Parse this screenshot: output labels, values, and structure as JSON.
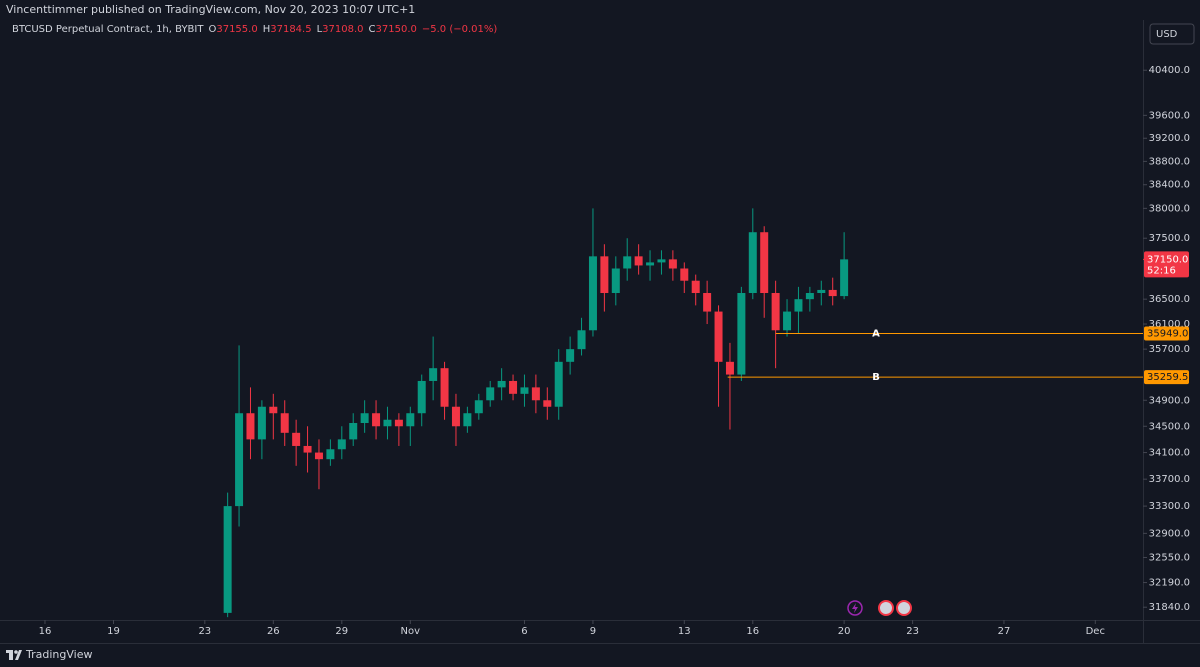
{
  "header": {
    "publisher": "Vincenttimmer published on TradingView.com, Nov 20, 2023 10:07 UTC+1"
  },
  "footer": {
    "brand": "TradingView"
  },
  "chart_data": {
    "type": "candlestick",
    "symbol": "BTCUSD Perpetual Contract, 1h, BYBIT",
    "legend": [
      {
        "key": "O",
        "value": "37155.0"
      },
      {
        "key": "H",
        "value": "37184.5"
      },
      {
        "key": "L",
        "value": "37108.0"
      },
      {
        "key": "C",
        "value": "37150.0"
      }
    ],
    "change": "−5.0 (−0.01%)",
    "currency": "USD",
    "log_scale": true,
    "up_color": "#089981",
    "down_color": "#f23645",
    "xlim": [
      14.03,
      64.09
    ],
    "ylim": [
      31660,
      41310
    ],
    "xticks": [
      {
        "value": 16,
        "label": "16"
      },
      {
        "value": 19,
        "label": "19"
      },
      {
        "value": 23,
        "label": "23"
      },
      {
        "value": 26,
        "label": "26"
      },
      {
        "value": 29,
        "label": "29"
      },
      {
        "value": 32,
        "label": "Nov"
      },
      {
        "value": 37,
        "label": "6"
      },
      {
        "value": 40,
        "label": "9"
      },
      {
        "value": 44,
        "label": "13"
      },
      {
        "value": 47,
        "label": "16"
      },
      {
        "value": 51,
        "label": "20"
      },
      {
        "value": 54,
        "label": "23"
      },
      {
        "value": 58,
        "label": "27"
      },
      {
        "value": 62,
        "label": "Dec"
      }
    ],
    "yticks": [
      {
        "value": 40400,
        "label": "40400.0"
      },
      {
        "value": 39600,
        "label": "39600.0"
      },
      {
        "value": 39200,
        "label": "39200.0"
      },
      {
        "value": 38800,
        "label": "38800.0"
      },
      {
        "value": 38400,
        "label": "38400.0"
      },
      {
        "value": 38000,
        "label": "38000.0"
      },
      {
        "value": 37500,
        "label": "37500.0"
      },
      {
        "value": 36500,
        "label": "36500.0"
      },
      {
        "value": 36100,
        "label": "36100.0"
      },
      {
        "value": 35700,
        "label": "35700.0"
      },
      {
        "value": 34900,
        "label": "34900.0"
      },
      {
        "value": 34500,
        "label": "34500.0"
      },
      {
        "value": 34100,
        "label": "34100.0"
      },
      {
        "value": 33700,
        "label": "33700.0"
      },
      {
        "value": 33300,
        "label": "33300.0"
      },
      {
        "value": 32900,
        "label": "32900.0"
      },
      {
        "value": 32550,
        "label": "32550.0"
      },
      {
        "value": 32190,
        "label": "32190.0"
      },
      {
        "value": 31840,
        "label": "31840.0"
      }
    ],
    "candles": {
      "x": [
        24,
        24.5,
        25,
        25.5,
        26,
        26.5,
        27,
        27.5,
        28,
        28.5,
        29,
        29.5,
        30,
        30.5,
        31,
        31.5,
        32,
        32.5,
        33,
        33.5,
        34,
        34.5,
        35,
        35.5,
        36,
        36.5,
        37,
        37.5,
        38,
        38.5,
        39,
        39.5,
        40,
        40.5,
        41,
        41.5,
        42,
        42.5,
        43,
        43.5,
        44,
        44.5,
        45,
        45.5,
        46,
        46.5,
        47,
        47.5,
        48,
        48.5,
        49,
        49.5,
        50,
        50.5,
        51
      ],
      "open": [
        31760,
        33300,
        34700,
        34300,
        34800,
        34700,
        34400,
        34200,
        34100,
        34000,
        34150,
        34300,
        34550,
        34700,
        34500,
        34600,
        34500,
        34700,
        35200,
        35400,
        34800,
        34500,
        34700,
        34900,
        35100,
        35200,
        35000,
        35100,
        34900,
        34800,
        35500,
        35700,
        36000,
        37200,
        36600,
        37000,
        37200,
        37050,
        37100,
        37150,
        37000,
        36800,
        36600,
        36300,
        35500,
        35300,
        36600,
        37600,
        36600,
        36000,
        36300,
        36500,
        36600,
        36650,
        36550
      ],
      "high": [
        33500,
        35760,
        35100,
        34900,
        35000,
        34900,
        34600,
        34500,
        34300,
        34300,
        34500,
        34700,
        34900,
        34900,
        34800,
        34700,
        34800,
        35300,
        35900,
        35500,
        35000,
        34800,
        35000,
        35200,
        35400,
        35300,
        35300,
        35300,
        35100,
        35700,
        35900,
        36200,
        38000,
        37400,
        37200,
        37500,
        37400,
        37300,
        37300,
        37300,
        37100,
        36900,
        36800,
        36400,
        35800,
        36700,
        38000,
        37700,
        36800,
        36500,
        36700,
        36700,
        36800,
        36850,
        37600
      ],
      "low": [
        31700,
        33000,
        34000,
        34000,
        34300,
        34200,
        33900,
        33800,
        33550,
        33900,
        34000,
        34200,
        34400,
        34300,
        34300,
        34200,
        34200,
        34500,
        34900,
        34600,
        34200,
        34400,
        34600,
        34800,
        34900,
        34900,
        34800,
        34700,
        34600,
        34600,
        35300,
        35600,
        35900,
        36300,
        36400,
        36800,
        36900,
        36800,
        36900,
        36800,
        36600,
        36400,
        36100,
        34800,
        34450,
        35200,
        36500,
        36200,
        35400,
        35900,
        35950,
        36300,
        36400,
        36400,
        36500
      ],
      "close": [
        33300,
        34700,
        34300,
        34800,
        34700,
        34400,
        34200,
        34100,
        34000,
        34150,
        34300,
        34550,
        34700,
        34500,
        34600,
        34500,
        34700,
        35200,
        35400,
        34800,
        34500,
        34700,
        34900,
        35100,
        35200,
        35000,
        35100,
        34900,
        34800,
        35500,
        35700,
        36000,
        37200,
        36600,
        37000,
        37200,
        37050,
        37100,
        37150,
        37000,
        36800,
        36600,
        36300,
        35500,
        35300,
        36600,
        37600,
        36600,
        36000,
        36300,
        36500,
        36600,
        36650,
        36550,
        37150
      ]
    },
    "levels": [
      {
        "name": "A",
        "value": 35949,
        "label": "35949.0",
        "start": 48.0,
        "color": "#ff9800"
      },
      {
        "name": "B",
        "value": 35259.5,
        "label": "35259.5",
        "start": 45.9,
        "color": "#ff9800"
      }
    ],
    "last_price": {
      "value": 37150,
      "label": "37150.0",
      "countdown": "52:16",
      "color": "#f23645"
    }
  }
}
